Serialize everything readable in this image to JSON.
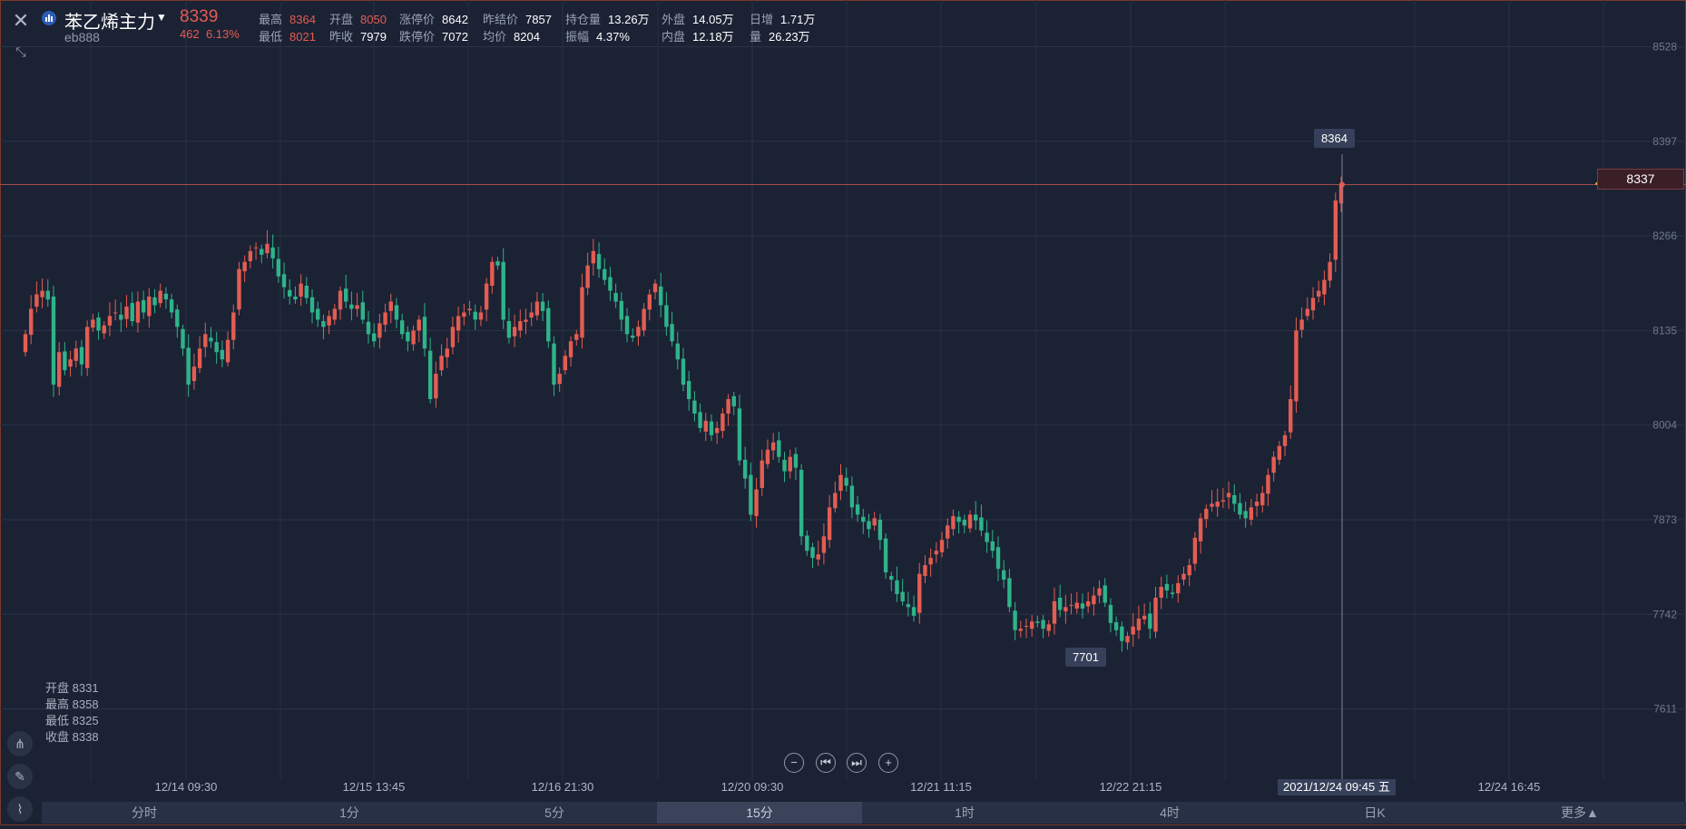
{
  "instrument": {
    "name": "苯乙烯主力",
    "code": "eb888",
    "last": "8339",
    "change": "462",
    "change_pct": "6.13%"
  },
  "quote_fields": [
    {
      "k": "最高",
      "v": "8364",
      "up": true
    },
    {
      "k": "开盘",
      "v": "8050",
      "up": true
    },
    {
      "k": "涨停价",
      "v": "8642"
    },
    {
      "k": "昨结价",
      "v": "7857"
    },
    {
      "k": "持仓量",
      "v": "13.26万"
    },
    {
      "k": "外盘",
      "v": "14.05万"
    },
    {
      "k": "日增",
      "v": "1.71万"
    },
    {
      "k": "最低",
      "v": "8021",
      "up": true
    },
    {
      "k": "昨收",
      "v": "7979"
    },
    {
      "k": "跌停价",
      "v": "7072"
    },
    {
      "k": "均价",
      "v": "8204"
    },
    {
      "k": "振幅",
      "v": "4.37%"
    },
    {
      "k": "内盘",
      "v": "12.18万"
    },
    {
      "k": "量",
      "v": "26.23万"
    }
  ],
  "ohlc_readout": [
    {
      "label": "开盘",
      "value": "8331"
    },
    {
      "label": "最高",
      "value": "8358"
    },
    {
      "label": "最低",
      "value": "8325"
    },
    {
      "label": "收盘",
      "value": "8338"
    }
  ],
  "current_price_tag": "8337",
  "high_marker": "8364",
  "low_marker": "7701",
  "crosshair_time": "2021/12/24 09:45 五",
  "tabs": [
    "分时",
    "1分",
    "5分",
    "15分",
    "1时",
    "4时",
    "日K",
    "更多▲"
  ],
  "active_tab": "15分",
  "icons": {
    "close": "close-icon",
    "collapse": "collapse-icon",
    "bell": "bell-icon"
  },
  "colors": {
    "up": "#e35d52",
    "down": "#2fb38a",
    "background": "#1b2234",
    "price_line": "#a54b4b"
  },
  "chart_data": {
    "type": "candlestick",
    "y_ticks": [
      8528,
      8397,
      8266,
      8135,
      8004,
      7873,
      7742,
      7611
    ],
    "x_ticks": [
      "12/14 09:30",
      "12/15 13:45",
      "12/16 21:30",
      "12/20 09:30",
      "12/21 11:15",
      "12/22 21:15",
      "12/24 16:45"
    ],
    "ylim": [
      7515,
      8555
    ],
    "current_price": 8337,
    "grid": true,
    "closes": [
      8130,
      8165,
      8185,
      8190,
      8178,
      8060,
      8105,
      8080,
      8095,
      8110,
      8088,
      8140,
      8150,
      8135,
      8142,
      8155,
      8160,
      8150,
      8168,
      8148,
      8175,
      8160,
      8182,
      8170,
      8190,
      8178,
      8160,
      8140,
      8110,
      8060,
      8085,
      8110,
      8130,
      8120,
      8105,
      8095,
      8122,
      8160,
      8220,
      8230,
      8245,
      8250,
      8240,
      8255,
      8235,
      8210,
      8195,
      8182,
      8178,
      8200,
      8180,
      8160,
      8150,
      8140,
      8155,
      8165,
      8190,
      8175,
      8165,
      8170,
      8150,
      8130,
      8120,
      8145,
      8160,
      8175,
      8150,
      8130,
      8120,
      8135,
      8150,
      8110,
      8040,
      8075,
      8100,
      8110,
      8140,
      8155,
      8160,
      8165,
      8150,
      8160,
      8200,
      8230,
      8225,
      8150,
      8125,
      8140,
      8148,
      8150,
      8160,
      8175,
      8162,
      8120,
      8060,
      8075,
      8100,
      8120,
      8130,
      8195,
      8225,
      8245,
      8220,
      8205,
      8190,
      8175,
      8150,
      8130,
      8125,
      8140,
      8165,
      8185,
      8200,
      8170,
      8140,
      8120,
      8095,
      8060,
      8040,
      8020,
      8000,
      8010,
      7990,
      8000,
      8020,
      8040,
      8030,
      7955,
      7930,
      7880,
      7915,
      7955,
      7970,
      7980,
      7960,
      7940,
      7960,
      7945,
      7850,
      7830,
      7820,
      7825,
      7850,
      7890,
      7910,
      7935,
      7920,
      7890,
      7880,
      7870,
      7860,
      7875,
      7845,
      7800,
      7790,
      7770,
      7760,
      7752,
      7740,
      7798,
      7810,
      7820,
      7830,
      7845,
      7865,
      7878,
      7870,
      7865,
      7880,
      7872,
      7858,
      7842,
      7830,
      7805,
      7790,
      7752,
      7720,
      7722,
      7726,
      7732,
      7730,
      7722,
      7728,
      7760,
      7748,
      7752,
      7755,
      7758,
      7750,
      7760,
      7768,
      7778,
      7758,
      7730,
      7720,
      7705,
      7712,
      7725,
      7736,
      7740,
      7722,
      7765,
      7780,
      7775,
      7770,
      7785,
      7798,
      7810,
      7848,
      7875,
      7888,
      7895,
      7898,
      7900,
      7910,
      7895,
      7880,
      7875,
      7890,
      7898,
      7910,
      7935,
      7960,
      7975,
      7990,
      8040,
      8135,
      8150,
      8165,
      8180,
      8190,
      8205,
      8230,
      8315,
      8338
    ]
  }
}
